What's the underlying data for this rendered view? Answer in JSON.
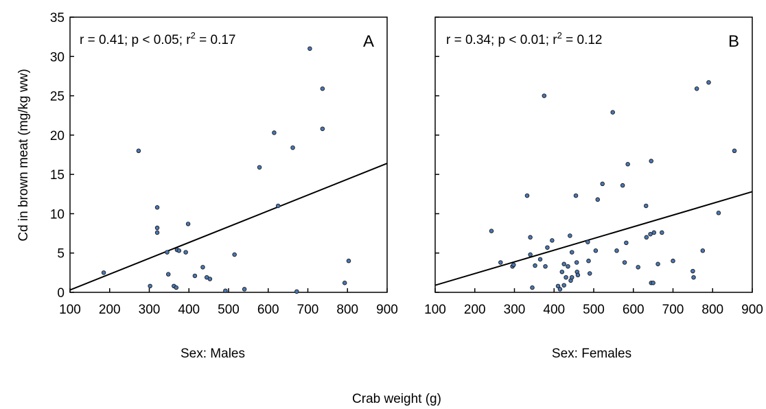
{
  "chart_data": {
    "type": "scatter",
    "ylabel": "Cd in brown meat (mg/kg ww)",
    "xlabel": "Crab weight (g)",
    "xlim": [
      100,
      900
    ],
    "ylim": [
      0,
      35
    ],
    "xticks": [
      100,
      200,
      300,
      400,
      500,
      600,
      700,
      800,
      900
    ],
    "yticks": [
      0,
      5,
      10,
      15,
      20,
      25,
      30,
      35
    ],
    "grid": false,
    "panels": [
      {
        "letter": "A",
        "caption": "Sex: Males",
        "stats": {
          "prefix": "r = 0.41; p < 0.05; r",
          "sup": "2",
          "suffix": " = 0.17"
        },
        "fit_line": {
          "x": [
            100,
            900
          ],
          "y": [
            0.3,
            16.4
          ]
        },
        "points": [
          [
            185,
            2.5
          ],
          [
            273,
            18
          ],
          [
            302,
            0.8
          ],
          [
            320,
            10.8
          ],
          [
            320,
            8.2
          ],
          [
            320,
            7.6
          ],
          [
            345,
            5.1
          ],
          [
            348,
            2.3
          ],
          [
            362,
            0.8
          ],
          [
            368,
            0.6
          ],
          [
            370,
            5.4
          ],
          [
            375,
            5.3
          ],
          [
            392,
            5.1
          ],
          [
            398,
            8.7
          ],
          [
            415,
            2.1
          ],
          [
            435,
            3.2
          ],
          [
            445,
            1.9
          ],
          [
            453,
            1.7
          ],
          [
            492,
            0.2
          ],
          [
            515,
            4.8
          ],
          [
            540,
            0.4
          ],
          [
            578,
            15.9
          ],
          [
            615,
            20.3
          ],
          [
            625,
            11.0
          ],
          [
            662,
            18.4
          ],
          [
            672,
            0.1
          ],
          [
            705,
            31.0
          ],
          [
            737,
            25.9
          ],
          [
            737,
            20.8
          ],
          [
            793,
            1.2
          ],
          [
            803,
            4.0
          ]
        ]
      },
      {
        "letter": "B",
        "caption": "Sex: Females",
        "stats": {
          "prefix": "r = 0.34; p < 0.01; r",
          "sup": "2",
          "suffix": " = 0.12"
        },
        "fit_line": {
          "x": [
            100,
            900
          ],
          "y": [
            0.9,
            12.8
          ]
        },
        "points": [
          [
            242,
            7.8
          ],
          [
            265,
            3.8
          ],
          [
            295,
            3.3
          ],
          [
            298,
            3.5
          ],
          [
            332,
            12.3
          ],
          [
            340,
            7.0
          ],
          [
            340,
            4.8
          ],
          [
            345,
            0.6
          ],
          [
            352,
            3.4
          ],
          [
            365,
            4.2
          ],
          [
            375,
            25.0
          ],
          [
            378,
            3.3
          ],
          [
            383,
            5.7
          ],
          [
            395,
            6.6
          ],
          [
            410,
            0.8
          ],
          [
            415,
            0.4
          ],
          [
            420,
            2.6
          ],
          [
            425,
            3.6
          ],
          [
            425,
            0.9
          ],
          [
            430,
            1.9
          ],
          [
            435,
            3.3
          ],
          [
            440,
            7.2
          ],
          [
            442,
            1.5
          ],
          [
            445,
            5.1
          ],
          [
            445,
            1.9
          ],
          [
            455,
            12.3
          ],
          [
            457,
            3.8
          ],
          [
            458,
            2.6
          ],
          [
            460,
            2.2
          ],
          [
            485,
            6.4
          ],
          [
            487,
            4.0
          ],
          [
            490,
            2.4
          ],
          [
            505,
            5.3
          ],
          [
            510,
            11.8
          ],
          [
            522,
            13.8
          ],
          [
            548,
            22.9
          ],
          [
            558,
            5.3
          ],
          [
            573,
            13.6
          ],
          [
            578,
            3.8
          ],
          [
            582,
            6.3
          ],
          [
            586,
            16.3
          ],
          [
            612,
            3.2
          ],
          [
            632,
            11.0
          ],
          [
            633,
            7.0
          ],
          [
            643,
            7.4
          ],
          [
            645,
            1.2
          ],
          [
            645,
            16.7
          ],
          [
            650,
            1.2
          ],
          [
            652,
            7.6
          ],
          [
            662,
            3.6
          ],
          [
            672,
            7.6
          ],
          [
            700,
            4.0
          ],
          [
            750,
            2.7
          ],
          [
            752,
            1.9
          ],
          [
            760,
            25.9
          ],
          [
            775,
            5.3
          ],
          [
            790,
            26.7
          ],
          [
            815,
            10.1
          ],
          [
            855,
            18.0
          ]
        ]
      }
    ]
  }
}
